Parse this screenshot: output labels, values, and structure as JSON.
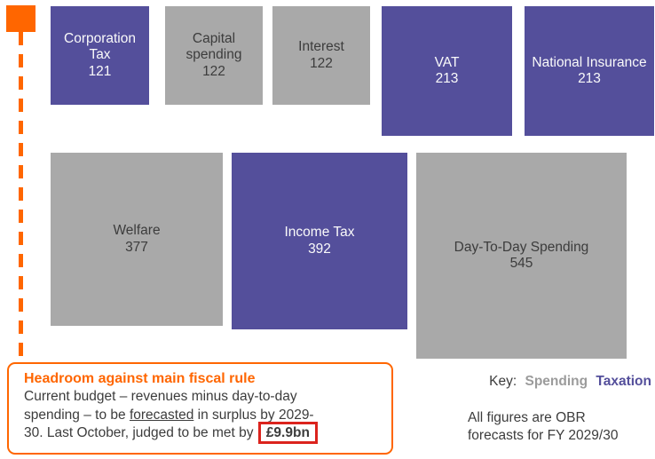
{
  "chart_data": {
    "type": "proportional_area_squares",
    "description_note": "block area proportional to value",
    "blocks": [
      {
        "label": "Corporation Tax",
        "value": 121,
        "category": "taxation"
      },
      {
        "label": "Capital spending",
        "value": 122,
        "category": "spending"
      },
      {
        "label": "Interest",
        "value": 122,
        "category": "spending"
      },
      {
        "label": "VAT",
        "value": 213,
        "category": "taxation"
      },
      {
        "label": "National Insurance",
        "value": 213,
        "category": "taxation"
      },
      {
        "label": "Welfare",
        "value": 377,
        "category": "spending"
      },
      {
        "label": "Income Tax",
        "value": 392,
        "category": "taxation"
      },
      {
        "label": "Day-To-Day Spending",
        "value": 545,
        "category": "spending"
      }
    ],
    "legend": {
      "key_label": "Key:",
      "spending_label": "Spending",
      "taxation_label": "Taxation"
    },
    "note": {
      "line1": "All figures are OBR",
      "line2": "forecasts for FY 2029/30"
    }
  },
  "annotation": {
    "title": "Headroom against main fiscal rule",
    "lines": [
      {
        "text": "Current budget – revenues minus day-to-day"
      },
      {
        "pre": "spending – to be ",
        "underline": "forecasted",
        "post": " in surplus by 2029-"
      },
      {
        "pre": "30. Last October, judged to be met by ",
        "boxed": "£9.9bn"
      }
    ]
  },
  "colors": {
    "taxation_purple": "#544F9B",
    "spending_gray": "#A9A9A9",
    "accent_orange": "#FF6600",
    "highlight_red": "#DB231D",
    "text_dark": "#3C3C3C"
  }
}
